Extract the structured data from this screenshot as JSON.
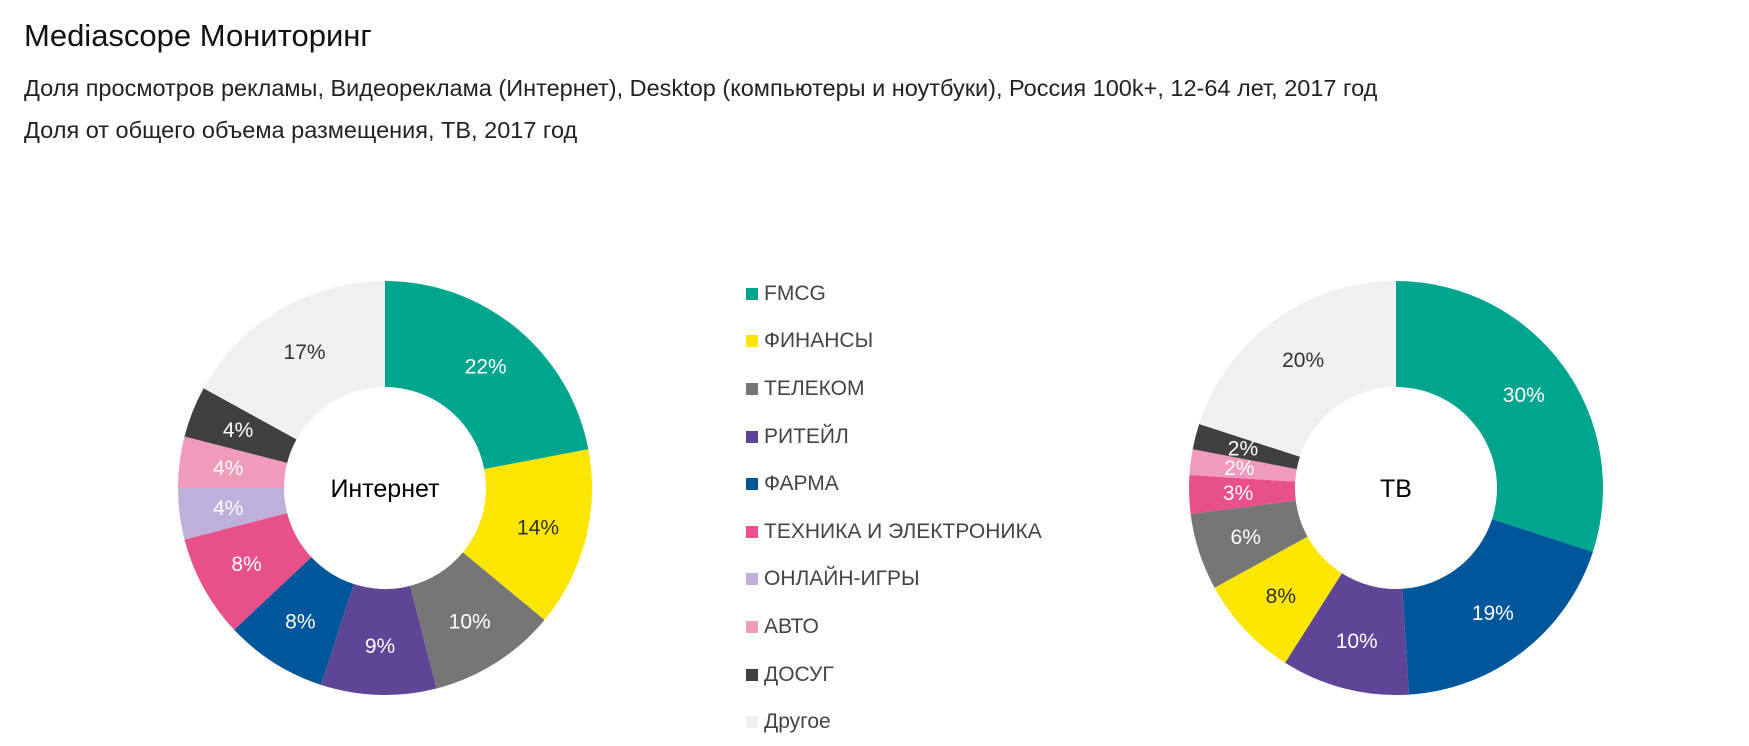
{
  "title": "Mediascope Мониторинг",
  "subtitle1": "Доля просмотров рекламы, Видеореклама (Интернет), Desktop (компьютеры и ноутбуки), Россия 100k+, 12-64 лет, 2017 год",
  "subtitle2": "Доля от общего объема размещения, ТВ, 2017 год",
  "chart_data": [
    {
      "type": "pie",
      "title": "Интернет",
      "unit": "%",
      "slices": [
        {
          "label": "FMCG",
          "value": 22
        },
        {
          "label": "ФИНАНСЫ",
          "value": 14
        },
        {
          "label": "ТЕЛЕКОМ",
          "value": 10
        },
        {
          "label": "РИТЕЙЛ",
          "value": 9
        },
        {
          "label": "ФАРМА",
          "value": 8
        },
        {
          "label": "ТЕХНИКА И ЭЛЕКТРОНИКА",
          "value": 8
        },
        {
          "label": "ОНЛАЙН-ИГРЫ",
          "value": 4
        },
        {
          "label": "АВТО",
          "value": 4
        },
        {
          "label": "ДОСУГ",
          "value": 4
        },
        {
          "label": "Другое",
          "value": 17
        }
      ]
    },
    {
      "type": "pie",
      "title": "ТВ",
      "unit": "%",
      "slices": [
        {
          "label": "FMCG",
          "value": 30
        },
        {
          "label": "ФАРМА",
          "value": 19
        },
        {
          "label": "РИТЕЙЛ",
          "value": 10
        },
        {
          "label": "ФИНАНСЫ",
          "value": 8
        },
        {
          "label": "ТЕЛЕКОМ",
          "value": 6
        },
        {
          "label": "ТЕХНИКА И ЭЛЕКТРОНИКА",
          "value": 3
        },
        {
          "label": "АВТО",
          "value": 2
        },
        {
          "label": "ДОСУГ",
          "value": 2
        },
        {
          "label": "Другое",
          "value": 20
        }
      ]
    }
  ],
  "legend": [
    {
      "label": "FMCG",
      "color": "#00A58E"
    },
    {
      "label": "ФИНАНСЫ",
      "color": "#FCE600"
    },
    {
      "label": "ТЕЛЕКОМ",
      "color": "#767676"
    },
    {
      "label": "РИТЕЙЛ",
      "color": "#5F4595"
    },
    {
      "label": "ФАРМА",
      "color": "#00569A"
    },
    {
      "label": "ТЕХНИКА И ЭЛЕКТРОНИКА",
      "color": "#E8508A"
    },
    {
      "label": "ОНЛАЙН-ИГРЫ",
      "color": "#BDB0DA"
    },
    {
      "label": "АВТО",
      "color": "#F19BBC"
    },
    {
      "label": "ДОСУГ",
      "color": "#404040"
    },
    {
      "label": "Другое",
      "color": "#F0F0F0"
    }
  ]
}
